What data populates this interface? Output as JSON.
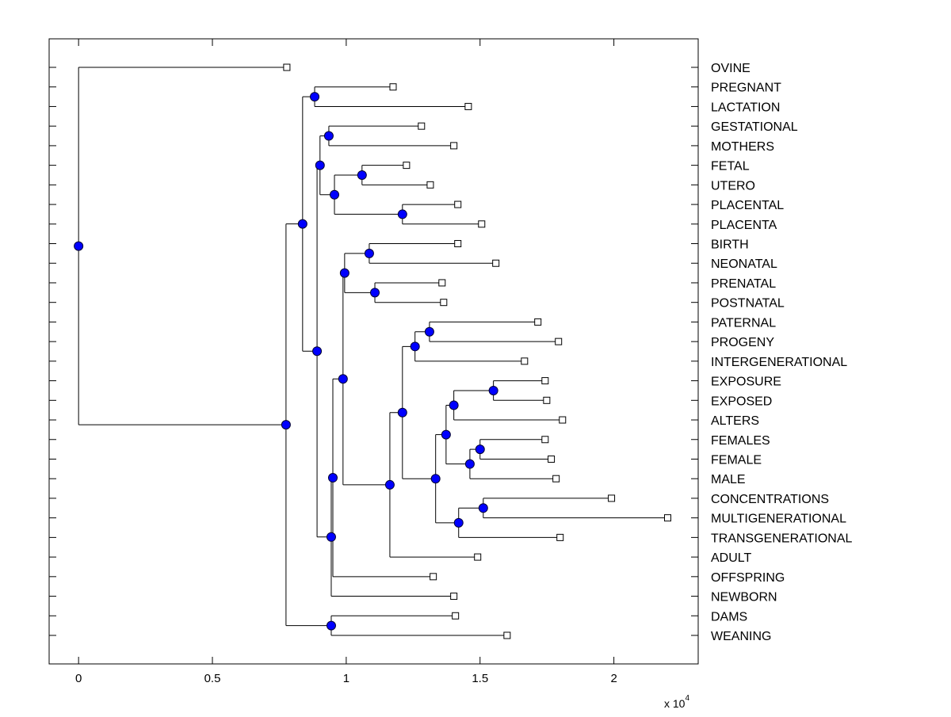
{
  "chart_data": {
    "type": "dendrogram",
    "title": "",
    "xlabel": "",
    "ylabel": "",
    "orientation": "left-to-right",
    "x_multiplier_label": "x 10",
    "x_multiplier_exponent": "4",
    "xlim": [
      -1100,
      23150
    ],
    "xticks": [
      0,
      5000,
      10000,
      15000,
      20000
    ],
    "xtick_labels": [
      "0",
      "0.5",
      "1",
      "1.5",
      "2"
    ],
    "grid": false,
    "colors": {
      "internal_node": "#0000ff",
      "leaf_node": "#ffffff",
      "line": "#000000"
    },
    "tree": {
      "height": 0,
      "children": [
        {
          "label": "OVINE",
          "height": 7780
        },
        {
          "height": 7750,
          "children": [
            {
              "height": 8370,
              "children": [
                {
                  "height": 8820,
                  "children": [
                    {
                      "label": "PREGNANT",
                      "height": 11750
                    },
                    {
                      "label": "LACTATION",
                      "height": 14560
                    }
                  ]
                },
                {
                  "height": 8910,
                  "children": [
                    {
                      "height": 9020,
                      "children": [
                        {
                          "height": 9350,
                          "children": [
                            {
                              "label": "GESTATIONAL",
                              "height": 12810
                            },
                            {
                              "label": "MOTHERS",
                              "height": 14020
                            }
                          ]
                        },
                        {
                          "height": 9560,
                          "children": [
                            {
                              "height": 10590,
                              "children": [
                                {
                                  "label": "FETAL",
                                  "height": 12250
                                },
                                {
                                  "label": "UTERO",
                                  "height": 13140
                                }
                              ]
                            },
                            {
                              "height": 12100,
                              "children": [
                                {
                                  "label": "PLACENTAL",
                                  "height": 14170
                                },
                                {
                                  "label": "PLACENTA",
                                  "height": 15060
                                }
                              ]
                            }
                          ]
                        }
                      ]
                    },
                    {
                      "height": 9440,
                      "children": [
                        {
                          "height": 9500,
                          "children": [
                            {
                              "height": 9880,
                              "children": [
                                {
                                  "height": 9940,
                                  "children": [
                                    {
                                      "height": 10860,
                                      "children": [
                                        {
                                          "label": "BIRTH",
                                          "height": 14170
                                        },
                                        {
                                          "label": "NEONATAL",
                                          "height": 15590
                                        }
                                      ]
                                    },
                                    {
                                      "height": 11070,
                                      "children": [
                                        {
                                          "label": "PRENATAL",
                                          "height": 13580
                                        },
                                        {
                                          "label": "POSTNATAL",
                                          "height": 13640
                                        }
                                      ]
                                    }
                                  ]
                                },
                                {
                                  "height": 11630,
                                  "children": [
                                    {
                                      "height": 12100,
                                      "children": [
                                        {
                                          "height": 12570,
                                          "children": [
                                            {
                                              "height": 13110,
                                              "children": [
                                                {
                                                  "label": "PATERNAL",
                                                  "height": 17160
                                                },
                                                {
                                                  "label": "PROGENY",
                                                  "height": 17930
                                                }
                                              ]
                                            },
                                            {
                                              "label": "INTERGENERATIONAL",
                                              "height": 16660
                                            }
                                          ]
                                        },
                                        {
                                          "height": 13340,
                                          "children": [
                                            {
                                              "height": 13730,
                                              "children": [
                                                {
                                                  "height": 14020,
                                                  "children": [
                                                    {
                                                      "height": 15500,
                                                      "children": [
                                                        {
                                                          "label": "EXPOSURE",
                                                          "height": 17430
                                                        },
                                                        {
                                                          "label": "EXPOSED",
                                                          "height": 17490
                                                        }
                                                      ]
                                                    },
                                                    {
                                                      "label": "ALTERS",
                                                      "height": 18080
                                                    }
                                                  ]
                                                },
                                                {
                                                  "height": 14620,
                                                  "children": [
                                                    {
                                                      "height": 15000,
                                                      "children": [
                                                        {
                                                          "label": "FEMALES",
                                                          "height": 17430
                                                        },
                                                        {
                                                          "label": "FEMALE",
                                                          "height": 17660
                                                        }
                                                      ]
                                                    },
                                                    {
                                                      "label": "MALE",
                                                      "height": 17840
                                                    }
                                                  ]
                                                }
                                              ]
                                            },
                                            {
                                              "height": 14200,
                                              "children": [
                                                {
                                                  "height": 15120,
                                                  "children": [
                                                    {
                                                      "label": "CONCENTRATIONS",
                                                      "height": 19910
                                                    },
                                                    {
                                                      "label": "MULTIGENERATIONAL",
                                                      "height": 22010
                                                    }
                                                  ]
                                                },
                                                {
                                                  "label": "TRANSGENERATIONAL",
                                                  "height": 17990
                                                }
                                              ]
                                            }
                                          ]
                                        }
                                      ]
                                    },
                                    {
                                      "label": "ADULT",
                                      "height": 14910
                                    }
                                  ]
                                }
                              ]
                            },
                            {
                              "label": "OFFSPRING",
                              "height": 13250
                            }
                          ]
                        },
                        {
                          "label": "NEWBORN",
                          "height": 14020
                        }
                      ]
                    }
                  ]
                }
              ]
            },
            {
              "height": 9440,
              "children": [
                {
                  "label": "DAMS",
                  "height": 14080
                },
                {
                  "label": "WEANING",
                  "height": 16010
                }
              ]
            }
          ]
        }
      ]
    }
  }
}
